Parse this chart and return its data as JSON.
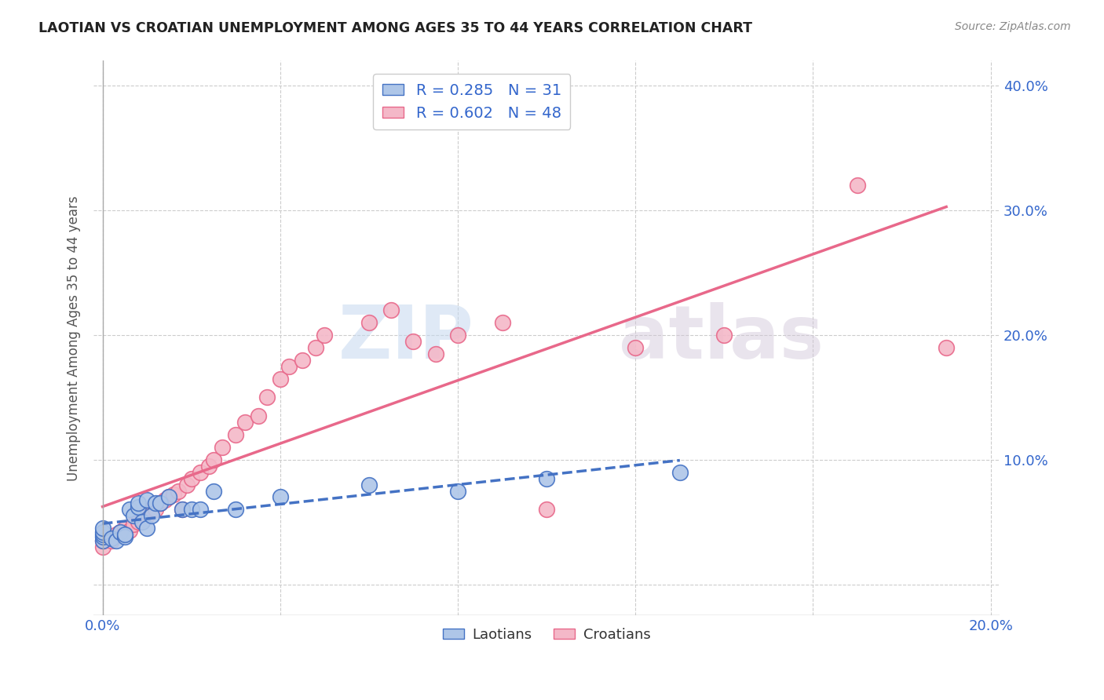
{
  "title": "LAOTIAN VS CROATIAN UNEMPLOYMENT AMONG AGES 35 TO 44 YEARS CORRELATION CHART",
  "source": "Source: ZipAtlas.com",
  "ylabel": "Unemployment Among Ages 35 to 44 years",
  "xlim": [
    -0.002,
    0.202
  ],
  "ylim": [
    -0.025,
    0.42
  ],
  "xticks": [
    0.0,
    0.04,
    0.08,
    0.12,
    0.16,
    0.2
  ],
  "yticks": [
    0.0,
    0.1,
    0.2,
    0.3,
    0.4
  ],
  "xtick_labels": [
    "0.0%",
    "",
    "",
    "",
    "",
    "20.0%"
  ],
  "ytick_labels_right": [
    "",
    "10.0%",
    "20.0%",
    "30.0%",
    "40.0%"
  ],
  "legend_label1": "Laotians",
  "legend_label2": "Croatians",
  "R1": 0.285,
  "N1": 31,
  "R2": 0.602,
  "N2": 48,
  "color1": "#aec6e8",
  "color2": "#f4b8c8",
  "line_color1": "#4472c4",
  "line_color2": "#e8688a",
  "watermark_zip": "ZIP",
  "watermark_atlas": "atlas",
  "laotian_x": [
    0.0,
    0.0,
    0.0,
    0.0,
    0.0,
    0.002,
    0.003,
    0.004,
    0.005,
    0.005,
    0.006,
    0.007,
    0.008,
    0.008,
    0.009,
    0.01,
    0.01,
    0.011,
    0.012,
    0.013,
    0.015,
    0.018,
    0.02,
    0.022,
    0.025,
    0.03,
    0.04,
    0.06,
    0.08,
    0.1,
    0.13
  ],
  "laotian_y": [
    0.035,
    0.038,
    0.04,
    0.042,
    0.045,
    0.037,
    0.035,
    0.042,
    0.038,
    0.04,
    0.06,
    0.055,
    0.062,
    0.065,
    0.05,
    0.068,
    0.045,
    0.055,
    0.065,
    0.065,
    0.07,
    0.06,
    0.06,
    0.06,
    0.075,
    0.06,
    0.07,
    0.08,
    0.075,
    0.085,
    0.09
  ],
  "croatian_x": [
    0.0,
    0.0,
    0.001,
    0.002,
    0.003,
    0.004,
    0.005,
    0.005,
    0.006,
    0.007,
    0.008,
    0.009,
    0.01,
    0.01,
    0.011,
    0.012,
    0.013,
    0.014,
    0.015,
    0.016,
    0.017,
    0.018,
    0.019,
    0.02,
    0.022,
    0.024,
    0.025,
    0.027,
    0.03,
    0.032,
    0.035,
    0.037,
    0.04,
    0.042,
    0.045,
    0.048,
    0.05,
    0.06,
    0.065,
    0.07,
    0.075,
    0.08,
    0.09,
    0.1,
    0.12,
    0.14,
    0.17,
    0.19
  ],
  "croatian_y": [
    0.03,
    0.035,
    0.038,
    0.035,
    0.04,
    0.042,
    0.04,
    0.045,
    0.043,
    0.048,
    0.05,
    0.052,
    0.055,
    0.058,
    0.06,
    0.06,
    0.065,
    0.068,
    0.07,
    0.072,
    0.075,
    0.06,
    0.08,
    0.085,
    0.09,
    0.095,
    0.1,
    0.11,
    0.12,
    0.13,
    0.135,
    0.15,
    0.165,
    0.175,
    0.18,
    0.19,
    0.2,
    0.21,
    0.22,
    0.195,
    0.185,
    0.2,
    0.21,
    0.06,
    0.19,
    0.2,
    0.32,
    0.19
  ]
}
